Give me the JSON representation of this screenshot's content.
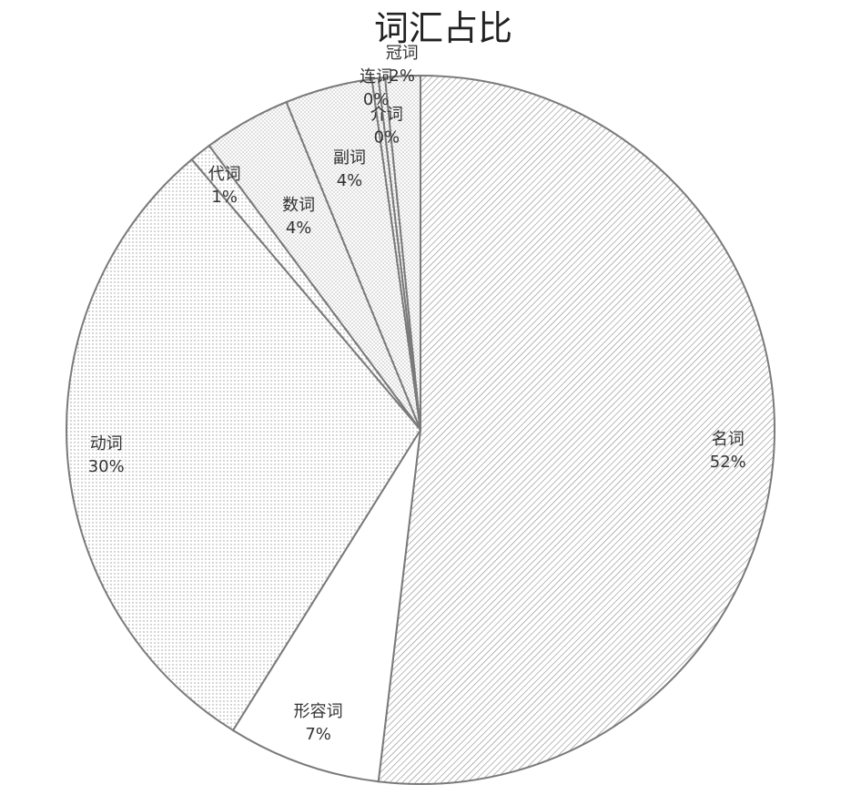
{
  "chart_data": {
    "type": "pie",
    "title": "词汇占比",
    "start_angle": "top",
    "direction": "clockwise",
    "legend": "none",
    "slices": [
      {
        "label": "名词",
        "value": 52,
        "pct_label": "52%",
        "pattern": "diagonal-hatch"
      },
      {
        "label": "形容词",
        "value": 7,
        "pct_label": "7%",
        "pattern": "none"
      },
      {
        "label": "动词",
        "value": 30,
        "pct_label": "30%",
        "pattern": "fine-dots"
      },
      {
        "label": "代词",
        "value": 1,
        "pct_label": "1%",
        "pattern": "fine-dots"
      },
      {
        "label": "数词",
        "value": 4,
        "pct_label": "4%",
        "pattern": "dots"
      },
      {
        "label": "副词",
        "value": 4,
        "pct_label": "4%",
        "pattern": "dots"
      },
      {
        "label": "连词",
        "value": 0.3,
        "pct_label": "0%",
        "pattern": "dots"
      },
      {
        "label": "介词",
        "value": 0.3,
        "pct_label": "0%",
        "pattern": "dots"
      },
      {
        "label": "冠词",
        "value": 1.6,
        "pct_label": "2%",
        "pattern": "dots"
      }
    ]
  }
}
